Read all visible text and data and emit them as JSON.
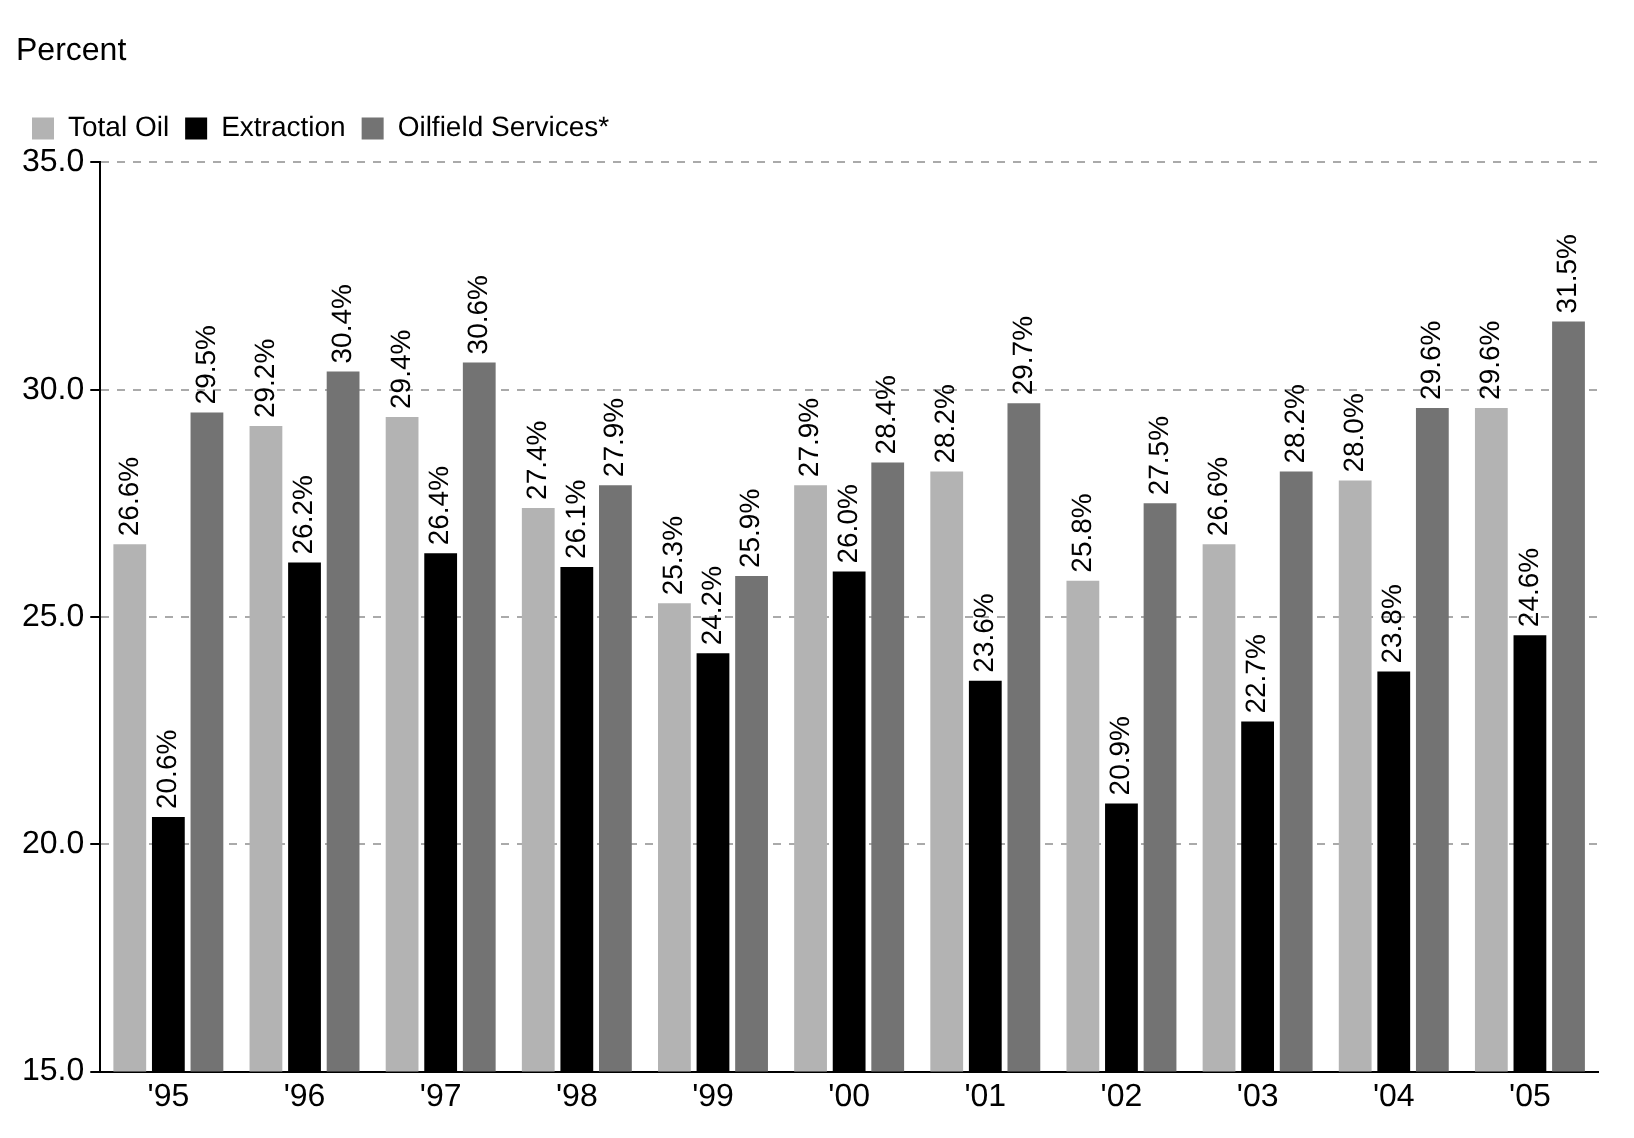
{
  "chart_data": {
    "type": "bar",
    "ylabel": "Percent",
    "categories": [
      "'95",
      "'96",
      "'97",
      "'98",
      "'99",
      "'00",
      "'01",
      "'02",
      "'03",
      "'04",
      "'05"
    ],
    "series": [
      {
        "name": "Total Oil",
        "color": "#b3b3b3",
        "values": [
          26.6,
          29.2,
          29.4,
          27.4,
          25.3,
          27.9,
          28.2,
          25.8,
          26.6,
          28.0,
          29.6
        ],
        "value_labels": [
          "26.6%",
          "29.2%",
          "29.4%",
          "27.4%",
          "25.3%",
          "27.9%",
          "28.2%",
          "25.8%",
          "26.6%",
          "28.0%",
          "29.6%"
        ]
      },
      {
        "name": "Extraction",
        "color": "#000000",
        "values": [
          20.6,
          26.2,
          26.4,
          26.1,
          24.2,
          26.0,
          23.6,
          20.9,
          22.7,
          23.8,
          24.6
        ],
        "value_labels": [
          "20.6%",
          "26.2%",
          "26.4%",
          "26.1%",
          "24.2%",
          "26.0%",
          "23.6%",
          "20.9%",
          "22.7%",
          "23.8%",
          "24.6%"
        ]
      },
      {
        "name": "Oilfield Services*",
        "color": "#737373",
        "values": [
          29.5,
          30.4,
          30.6,
          27.9,
          25.9,
          28.4,
          29.7,
          27.5,
          28.2,
          29.6,
          31.5
        ],
        "value_labels": [
          "29.5%",
          "30.4%",
          "30.6%",
          "27.9%",
          "25.9%",
          "28.4%",
          "29.7%",
          "27.5%",
          "28.2%",
          "29.6%",
          "31.5%"
        ]
      }
    ],
    "ylim": [
      15,
      35
    ],
    "yticks": [
      {
        "value": 15,
        "label": "15.0"
      },
      {
        "value": 20,
        "label": "20.0"
      },
      {
        "value": 25,
        "label": "25.0"
      },
      {
        "value": 30,
        "label": "30.0"
      },
      {
        "value": 35,
        "label": "35.0"
      }
    ],
    "grid": "y",
    "legend": "top left"
  }
}
